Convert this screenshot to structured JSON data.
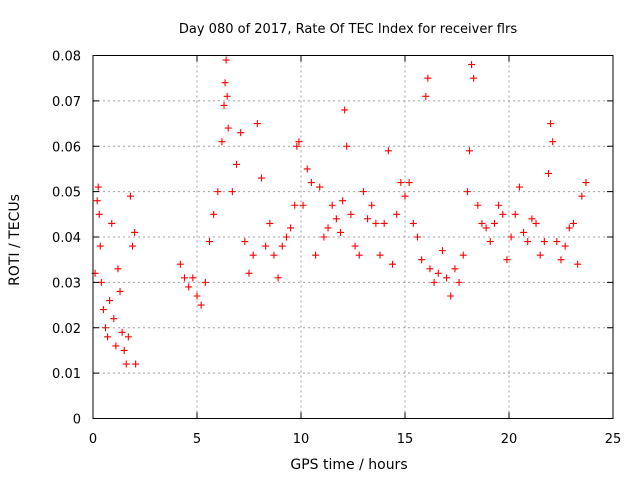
{
  "chart_data": {
    "type": "scatter",
    "title": "Day 080 of 2017, Rate Of TEC Index for receiver flrs",
    "xlabel": "GPS time / hours",
    "ylabel": "ROTI / TECUs",
    "xlim": [
      0,
      25
    ],
    "ylim": [
      0,
      0.08
    ],
    "x_ticks": [
      "0",
      "5",
      "10",
      "15",
      "20",
      "25"
    ],
    "y_ticks": [
      "0",
      "0.01",
      "0.02",
      "0.03",
      "0.04",
      "0.05",
      "0.06",
      "0.07",
      "0.08"
    ],
    "grid": true,
    "legend": "none",
    "marker": "plus",
    "color": "#ff0000",
    "series": [
      {
        "x": [
          0.1,
          0.2,
          0.25,
          0.3,
          0.35,
          0.4,
          0.5,
          0.6,
          0.7,
          0.8,
          0.9,
          1.0,
          1.1,
          1.2,
          1.3,
          1.4,
          1.5,
          1.6,
          1.7,
          1.8,
          1.9,
          2.0,
          2.05,
          4.2,
          4.4,
          4.6,
          4.8,
          5.0,
          5.2,
          5.4,
          5.6,
          5.8,
          6.0,
          6.2,
          6.3,
          6.35,
          6.4,
          6.45,
          6.5,
          6.7,
          6.9,
          7.1,
          7.3,
          7.5,
          7.7,
          7.9,
          8.1,
          8.3,
          8.5,
          8.7,
          8.9,
          9.1,
          9.3,
          9.5,
          9.7,
          9.8,
          9.9,
          10.1,
          10.3,
          10.5,
          10.7,
          10.9,
          11.1,
          11.3,
          11.5,
          11.7,
          11.9,
          12.0,
          12.1,
          12.2,
          12.4,
          12.6,
          12.8,
          13.0,
          13.2,
          13.4,
          13.6,
          13.8,
          14.0,
          14.2,
          14.4,
          14.6,
          14.8,
          15.0,
          15.2,
          15.4,
          15.6,
          15.8,
          16.0,
          16.1,
          16.2,
          16.4,
          16.6,
          16.8,
          17.0,
          17.2,
          17.4,
          17.6,
          17.8,
          18.0,
          18.1,
          18.2,
          18.3,
          18.5,
          18.7,
          18.9,
          19.1,
          19.3,
          19.5,
          19.7,
          19.9,
          20.1,
          20.3,
          20.5,
          20.7,
          20.9,
          21.1,
          21.3,
          21.5,
          21.7,
          21.9,
          22.0,
          22.1,
          22.3,
          22.5,
          22.7,
          22.9,
          23.1,
          23.3,
          23.5,
          23.7
        ],
        "y": [
          0.032,
          0.048,
          0.051,
          0.045,
          0.038,
          0.03,
          0.024,
          0.02,
          0.018,
          0.026,
          0.043,
          0.022,
          0.016,
          0.033,
          0.028,
          0.019,
          0.015,
          0.012,
          0.018,
          0.049,
          0.038,
          0.041,
          0.012,
          0.034,
          0.031,
          0.029,
          0.031,
          0.027,
          0.025,
          0.03,
          0.039,
          0.045,
          0.05,
          0.061,
          0.069,
          0.074,
          0.079,
          0.071,
          0.064,
          0.05,
          0.056,
          0.063,
          0.039,
          0.032,
          0.036,
          0.065,
          0.053,
          0.038,
          0.043,
          0.036,
          0.031,
          0.038,
          0.04,
          0.042,
          0.047,
          0.06,
          0.061,
          0.047,
          0.055,
          0.052,
          0.036,
          0.051,
          0.04,
          0.042,
          0.047,
          0.044,
          0.041,
          0.048,
          0.068,
          0.06,
          0.045,
          0.038,
          0.036,
          0.05,
          0.044,
          0.047,
          0.043,
          0.036,
          0.043,
          0.059,
          0.034,
          0.045,
          0.052,
          0.049,
          0.052,
          0.043,
          0.04,
          0.035,
          0.071,
          0.075,
          0.033,
          0.03,
          0.032,
          0.037,
          0.031,
          0.027,
          0.033,
          0.03,
          0.036,
          0.05,
          0.059,
          0.078,
          0.075,
          0.047,
          0.043,
          0.042,
          0.039,
          0.043,
          0.047,
          0.045,
          0.035,
          0.04,
          0.045,
          0.051,
          0.041,
          0.039,
          0.044,
          0.043,
          0.036,
          0.039,
          0.054,
          0.065,
          0.061,
          0.039,
          0.035,
          0.038,
          0.042,
          0.043,
          0.034,
          0.049,
          0.052
        ]
      }
    ]
  }
}
